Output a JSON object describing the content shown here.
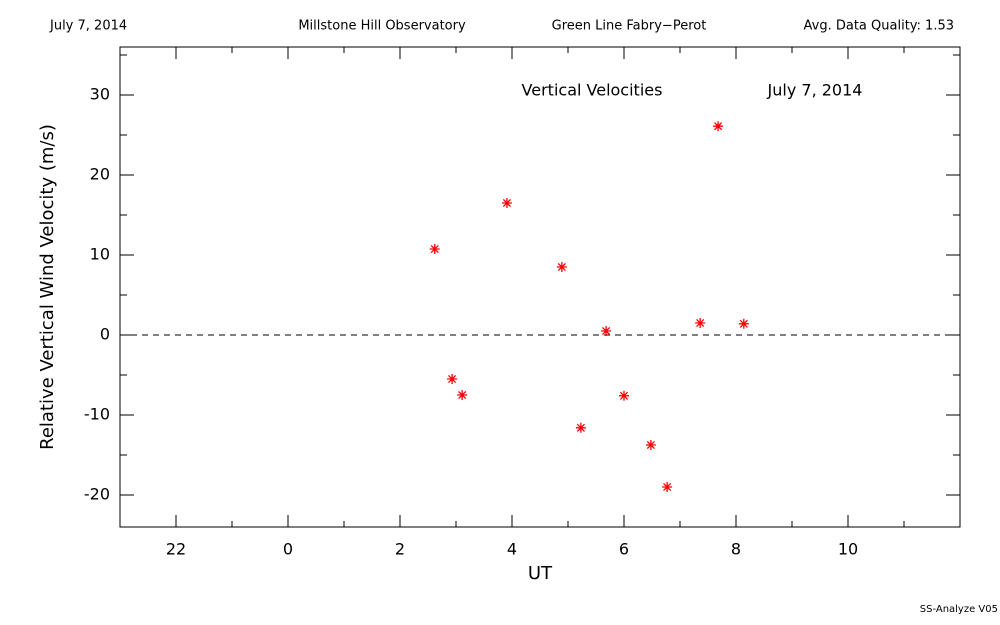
{
  "chart_data": {
    "type": "scatter",
    "header": [
      "July 7, 2014",
      "Millstone Hill Observatory",
      "Green Line Fabry−Perot",
      "Avg. Data Quality: 1.53"
    ],
    "annotations": [
      "Vertical Velocities",
      "July 7, 2014"
    ],
    "footer": "SS-Analyze V05",
    "xlabel": "UT",
    "ylabel": "Relative Vertical Wind Velocity (m/s)",
    "color": "#ff0000",
    "x": [
      2.62,
      2.93,
      3.11,
      3.91,
      4.89,
      5.23,
      5.68,
      6.0,
      6.48,
      6.77,
      7.36,
      7.68,
      8.14
    ],
    "values": [
      10.75,
      -5.5,
      -7.5,
      16.5,
      8.5,
      -11.6,
      0.5,
      -7.6,
      -13.75,
      -19,
      1.5,
      26.1,
      1.4
    ],
    "xlim": [
      -3,
      12
    ],
    "ylim": [
      -24,
      36
    ],
    "xticks": [
      {
        "value": -2,
        "label": "22"
      },
      0,
      2,
      4,
      6,
      8,
      10
    ],
    "xminorticks": [
      -1,
      1,
      3,
      5,
      7,
      9,
      11
    ],
    "yticks": [
      -20,
      -10,
      0,
      10,
      20,
      30
    ],
    "yminorticks": [
      -15,
      -5,
      5,
      15,
      25,
      35
    ],
    "hline": 0
  }
}
